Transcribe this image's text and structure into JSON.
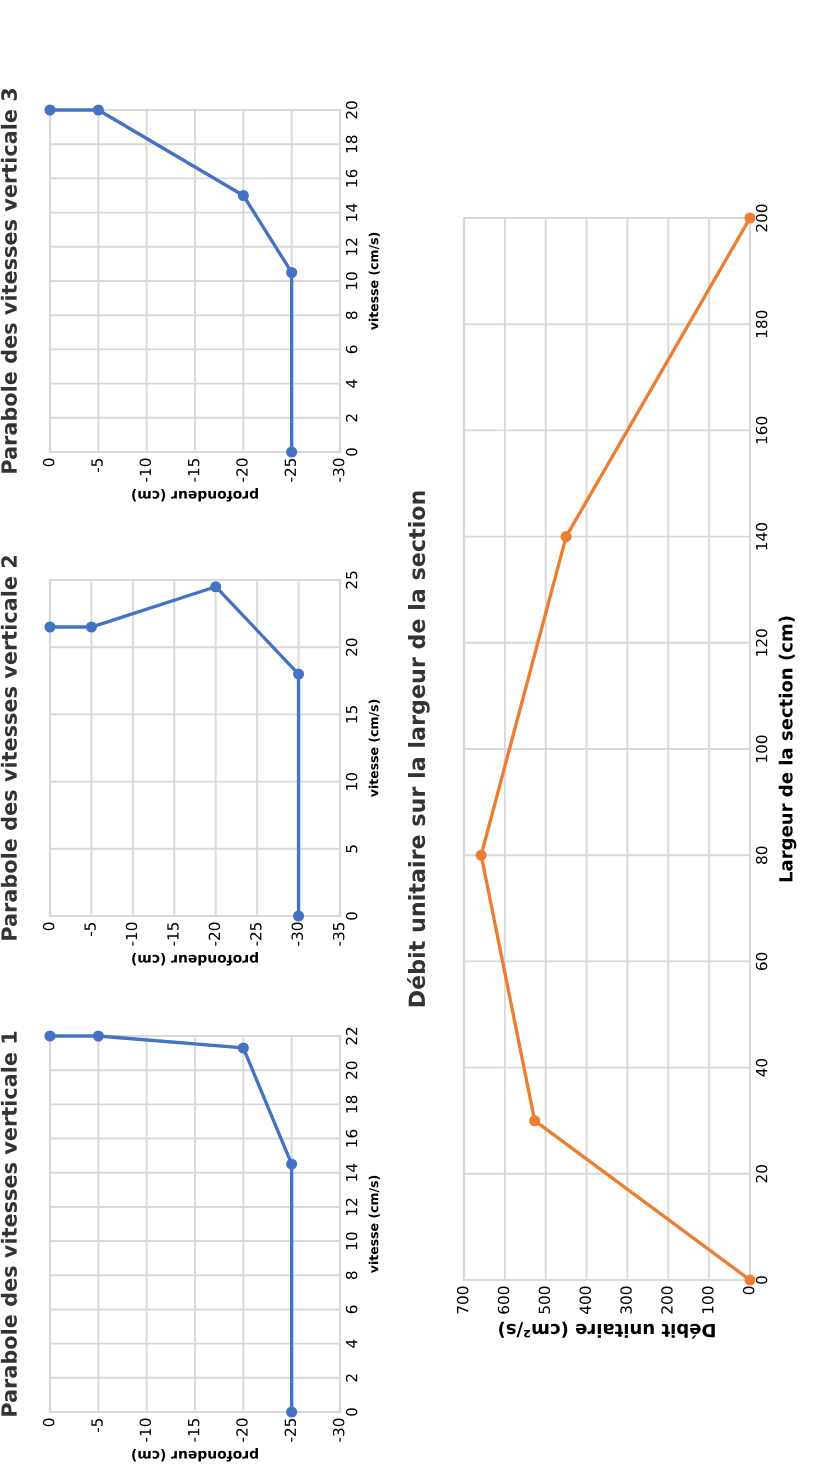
{
  "chart_data": [
    {
      "type": "line",
      "title": "Parabole des vitesses verticale 1",
      "xlabel": "profondeur (cm)",
      "ylabel": "vitesse (cm/s)",
      "x": [
        0,
        -5,
        -20,
        -25,
        -25
      ],
      "series": [
        {
          "color": "#4472c4",
          "values": [
            22,
            22,
            21.3,
            14.5,
            0
          ]
        }
      ],
      "xlim": [
        0,
        -30
      ],
      "xticks": [
        0,
        -5,
        -10,
        -15,
        -20,
        -25,
        -30
      ],
      "ylim": [
        0,
        22
      ],
      "yticks": [
        0,
        2,
        4,
        6,
        8,
        10,
        12,
        14,
        16,
        18,
        20,
        22
      ],
      "grid": true,
      "marker": "circle"
    },
    {
      "type": "line",
      "title": "Parabole des vitesses verticale 2",
      "xlabel": "profondeur (cm)",
      "ylabel": "vitesse (cm/s)",
      "x": [
        0,
        -5,
        -20,
        -30,
        -30
      ],
      "series": [
        {
          "color": "#4472c4",
          "values": [
            21.5,
            21.5,
            24.5,
            18,
            0
          ]
        }
      ],
      "xlim": [
        0,
        -35
      ],
      "xticks": [
        0,
        -5,
        -10,
        -15,
        -20,
        -25,
        -30,
        -35
      ],
      "ylim": [
        0,
        25
      ],
      "yticks": [
        0,
        5,
        10,
        15,
        20,
        25
      ],
      "grid": true,
      "marker": "circle"
    },
    {
      "type": "line",
      "title": "Parabole des vitesses verticale 3",
      "xlabel": "profondeur (cm)",
      "ylabel": "vitesse (cm/s)",
      "x": [
        0,
        -5,
        -20,
        -25,
        -25
      ],
      "series": [
        {
          "color": "#4472c4",
          "values": [
            20,
            20,
            15,
            10.5,
            0
          ]
        }
      ],
      "xlim": [
        0,
        -30
      ],
      "xticks": [
        0,
        -5,
        -10,
        -15,
        -20,
        -25,
        -30
      ],
      "ylim": [
        0,
        20
      ],
      "yticks": [
        0,
        2,
        4,
        6,
        8,
        10,
        12,
        14,
        16,
        18,
        20
      ],
      "grid": true,
      "marker": "circle"
    },
    {
      "type": "line",
      "title": "Débit unitaire sur la largeur de la section",
      "xlabel": "Débit unitaire (cm²/s)",
      "ylabel": "Largeur de la section (cm)",
      "x": [
        0,
        527,
        658,
        450,
        0
      ],
      "series": [
        {
          "color": "#ed7d31",
          "values": [
            0,
            30,
            80,
            140,
            200
          ]
        }
      ],
      "xlim": [
        700,
        0
      ],
      "xticks": [
        700,
        600,
        500,
        400,
        300,
        200,
        100,
        0
      ],
      "ylim": [
        0,
        200
      ],
      "yticks": [
        0,
        20,
        40,
        60,
        80,
        100,
        120,
        140,
        160,
        180,
        200
      ],
      "grid": true,
      "marker": "circle"
    }
  ]
}
